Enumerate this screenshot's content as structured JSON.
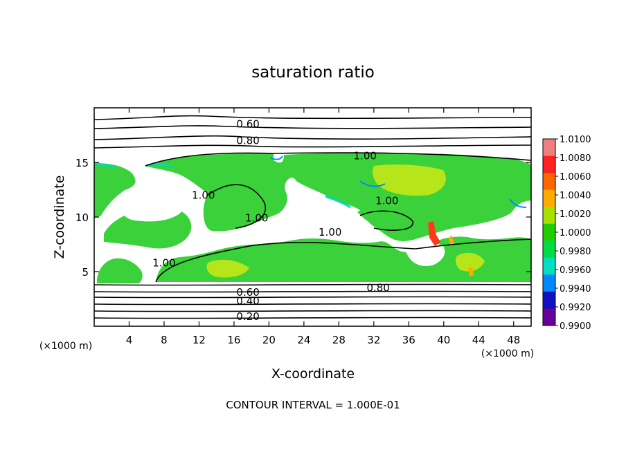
{
  "chart_data": {
    "type": "heatmap",
    "title": "saturation ratio",
    "xlabel": "X-coordinate",
    "ylabel": "Z-coordinate",
    "x_unit_label": "(×1000 m)",
    "y_unit_label": "(×1000 m)",
    "xlim": [
      0,
      50
    ],
    "ylim": [
      0,
      20
    ],
    "x_ticks": [
      4,
      8,
      12,
      16,
      20,
      24,
      28,
      32,
      36,
      40,
      44,
      48
    ],
    "y_ticks": [
      5,
      10,
      15
    ],
    "footer": "CONTOUR INTERVAL = 1.000E-01",
    "colorbar": {
      "levels": [
        "1.0100",
        "1.0080",
        "1.0060",
        "1.0040",
        "1.0020",
        "1.0000",
        "0.9980",
        "0.9960",
        "0.9940",
        "0.9920",
        "0.9900"
      ],
      "colors": [
        "#f08080",
        "#ff2020",
        "#ff6600",
        "#ffaa00",
        "#a8e000",
        "#22cc00",
        "#00dd44",
        "#00e0c0",
        "#0088ff",
        "#1010c0",
        "#660099"
      ]
    },
    "contour_labels": [
      {
        "text": "0.60",
        "x": 17.6,
        "y": 18.5
      },
      {
        "text": "0.80",
        "x": 17.6,
        "y": 17.0
      },
      {
        "text": "1.00",
        "x": 31.0,
        "y": 15.6
      },
      {
        "text": "1.00",
        "x": 12.5,
        "y": 12.0
      },
      {
        "text": "1.00",
        "x": 18.6,
        "y": 9.9
      },
      {
        "text": "1.00",
        "x": 27.0,
        "y": 8.6
      },
      {
        "text": "1.00",
        "x": 33.5,
        "y": 11.5
      },
      {
        "text": "1.00",
        "x": 8.0,
        "y": 5.8
      },
      {
        "text": "0.80",
        "x": 32.5,
        "y": 3.5
      },
      {
        "text": "0.60",
        "x": 17.6,
        "y": 3.1
      },
      {
        "text": "0.40",
        "x": 17.6,
        "y": 2.3
      },
      {
        "text": "0.20",
        "x": 17.6,
        "y": 0.9
      }
    ]
  }
}
